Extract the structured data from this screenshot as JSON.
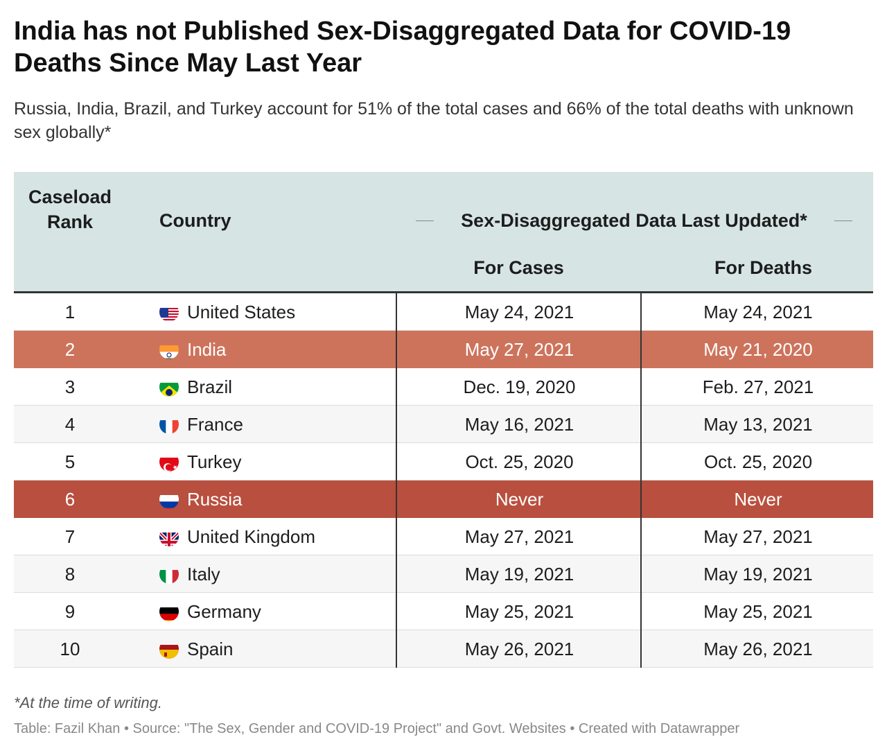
{
  "title": "India has not Published Sex-Disaggregated Data for COVID-19 Deaths Since May Last Year",
  "subtitle": "Russia, India, Brazil, and Turkey account for 51% of the total cases and 66% of the total deaths with unknown sex globally*",
  "header": {
    "rank": "Caseload Rank",
    "country": "Country",
    "group": "Sex-Disaggregated Data Last Updated*",
    "cases": "For Cases",
    "deaths": "For Deaths"
  },
  "footnote": "*At the time of writing.",
  "credits": "Table: Fazil Khan • Source: \"The Sex, Gender and COVID-19 Project\" and Govt. Websites • Created with Datawrapper",
  "colors": {
    "header_bg": "#d6e4e4",
    "india_highlight": "#cd735c",
    "russia_highlight": "#b94f3e"
  },
  "chart_data": {
    "type": "table",
    "columns": [
      "Caseload Rank",
      "Country",
      "For Cases",
      "For Deaths"
    ],
    "rows": [
      {
        "rank": "1",
        "country": "United States",
        "flag": "us-flag-icon",
        "cases": "May 24, 2021",
        "deaths": "May 24, 2021"
      },
      {
        "rank": "2",
        "country": "India",
        "flag": "india-flag-icon",
        "cases": "May 27, 2021",
        "deaths": "May 21, 2020",
        "highlight": "india"
      },
      {
        "rank": "3",
        "country": "Brazil",
        "flag": "brazil-flag-icon",
        "cases": "Dec. 19, 2020",
        "deaths": "Feb. 27, 2021"
      },
      {
        "rank": "4",
        "country": "France",
        "flag": "france-flag-icon",
        "cases": "May 16, 2021",
        "deaths": "May 13, 2021"
      },
      {
        "rank": "5",
        "country": "Turkey",
        "flag": "turkey-flag-icon",
        "cases": "Oct. 25, 2020",
        "deaths": "Oct. 25, 2020"
      },
      {
        "rank": "6",
        "country": "Russia",
        "flag": "russia-flag-icon",
        "cases": "Never",
        "deaths": "Never",
        "highlight": "russia"
      },
      {
        "rank": "7",
        "country": "United Kingdom",
        "flag": "uk-flag-icon",
        "cases": "May 27, 2021",
        "deaths": "May 27, 2021"
      },
      {
        "rank": "8",
        "country": "Italy",
        "flag": "italy-flag-icon",
        "cases": "May 19, 2021",
        "deaths": "May 19, 2021"
      },
      {
        "rank": "9",
        "country": "Germany",
        "flag": "germany-flag-icon",
        "cases": "May 25, 2021",
        "deaths": "May 25, 2021"
      },
      {
        "rank": "10",
        "country": "Spain",
        "flag": "spain-flag-icon",
        "cases": "May 26, 2021",
        "deaths": "May 26, 2021"
      }
    ]
  }
}
